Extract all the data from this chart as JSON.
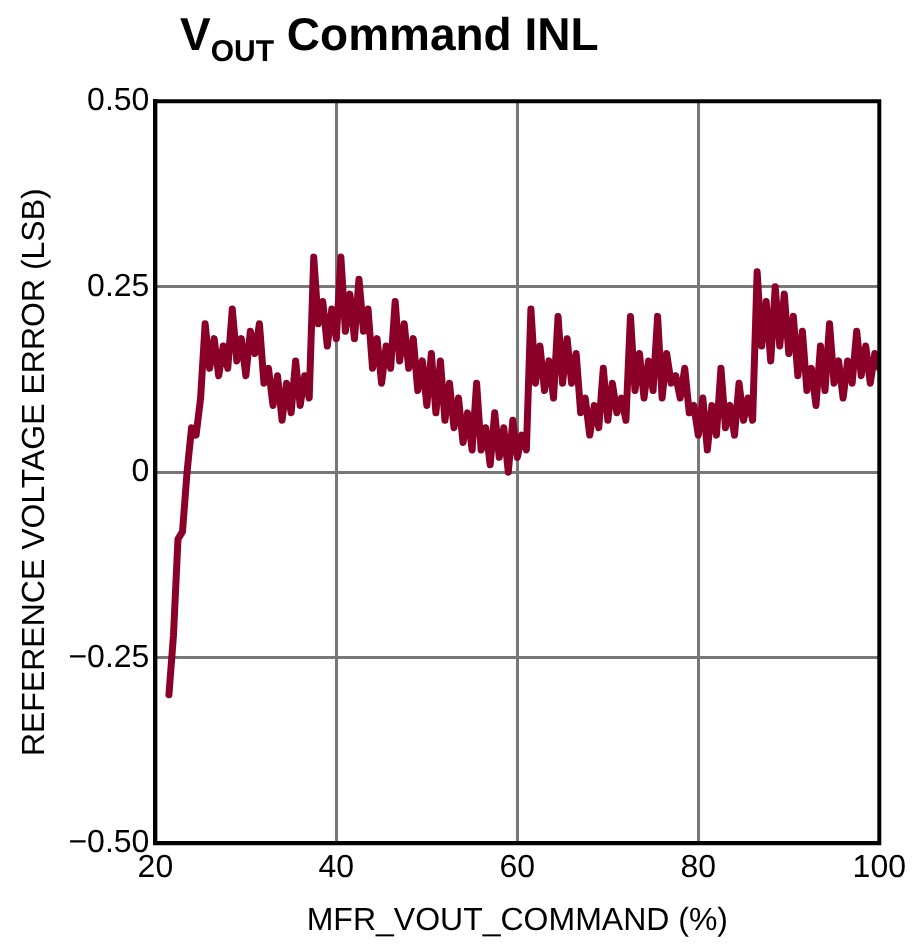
{
  "chart_data": {
    "type": "line",
    "title": "V$_{OUT}$ Command INL",
    "xlabel": "MFR_VOUT_COMMAND (%)",
    "ylabel": "REFERENCE VOLTAGE ERROR (LSB)",
    "x": [
      21.5,
      22,
      22.5,
      23,
      23.5,
      24,
      24.5,
      25,
      25.5,
      26,
      26.5,
      27,
      27.5,
      28,
      28.5,
      29,
      29.5,
      30,
      30.5,
      31,
      31.5,
      32,
      32.5,
      33,
      33.5,
      34,
      34.5,
      35,
      35.5,
      36,
      36.5,
      37,
      37.5,
      38,
      38.5,
      39,
      39.5,
      40,
      40.5,
      41,
      41.5,
      42,
      42.5,
      43,
      43.5,
      44,
      44.5,
      45,
      45.5,
      46,
      46.5,
      47,
      47.5,
      48,
      48.5,
      49,
      49.5,
      50,
      50.5,
      51,
      51.5,
      52,
      52.5,
      53,
      53.5,
      54,
      54.5,
      55,
      55.5,
      56,
      56.5,
      57,
      57.5,
      58,
      58.5,
      59,
      59.5,
      60,
      60.5,
      61,
      61.5,
      62,
      62.5,
      63,
      63.5,
      64,
      64.5,
      65,
      65.5,
      66,
      66.5,
      67,
      67.5,
      68,
      68.5,
      69,
      69.5,
      70,
      70.5,
      71,
      71.5,
      72,
      72.5,
      73,
      73.5,
      74,
      74.5,
      75,
      75.5,
      76,
      76.5,
      77,
      77.5,
      78,
      78.5,
      79,
      79.5,
      80,
      80.5,
      81,
      81.5,
      82,
      82.5,
      83,
      83.5,
      84,
      84.5,
      85,
      85.5,
      86,
      86.5,
      87,
      87.5,
      88,
      88.5,
      89,
      89.5,
      90,
      90.5,
      91,
      91.5,
      92,
      92.5,
      93,
      93.5,
      94,
      94.5,
      95,
      95.5,
      96,
      96.5,
      97,
      97.5,
      98,
      98.5,
      99,
      99.5,
      100
    ],
    "series": [
      {
        "color": "#8b0029",
        "values": [
          -0.3,
          -0.22,
          -0.09,
          -0.08,
          0.0,
          0.06,
          0.05,
          0.1,
          0.2,
          0.14,
          0.18,
          0.13,
          0.17,
          0.14,
          0.22,
          0.15,
          0.18,
          0.13,
          0.19,
          0.16,
          0.2,
          0.12,
          0.14,
          0.09,
          0.13,
          0.07,
          0.12,
          0.08,
          0.15,
          0.09,
          0.13,
          0.1,
          0.29,
          0.2,
          0.23,
          0.17,
          0.22,
          0.18,
          0.29,
          0.19,
          0.24,
          0.18,
          0.26,
          0.19,
          0.22,
          0.14,
          0.18,
          0.12,
          0.17,
          0.14,
          0.23,
          0.15,
          0.2,
          0.14,
          0.18,
          0.11,
          0.15,
          0.09,
          0.16,
          0.08,
          0.15,
          0.07,
          0.12,
          0.06,
          0.1,
          0.04,
          0.08,
          0.03,
          0.12,
          0.03,
          0.06,
          0.01,
          0.08,
          0.02,
          0.06,
          0.0,
          0.07,
          0.02,
          0.05,
          0.03,
          0.22,
          0.12,
          0.17,
          0.11,
          0.15,
          0.1,
          0.21,
          0.12,
          0.18,
          0.12,
          0.16,
          0.08,
          0.1,
          0.05,
          0.09,
          0.06,
          0.14,
          0.07,
          0.12,
          0.08,
          0.1,
          0.07,
          0.21,
          0.11,
          0.16,
          0.1,
          0.15,
          0.11,
          0.21,
          0.1,
          0.16,
          0.12,
          0.13,
          0.1,
          0.14,
          0.08,
          0.09,
          0.05,
          0.1,
          0.03,
          0.09,
          0.05,
          0.14,
          0.06,
          0.09,
          0.05,
          0.12,
          0.07,
          0.1,
          0.07,
          0.27,
          0.17,
          0.23,
          0.15,
          0.25,
          0.17,
          0.24,
          0.16,
          0.21,
          0.13,
          0.19,
          0.11,
          0.14,
          0.09,
          0.17,
          0.11,
          0.2,
          0.12,
          0.15,
          0.1,
          0.15,
          0.12,
          0.19,
          0.13,
          0.17,
          0.12,
          0.16,
          0.14
        ]
      }
    ],
    "xlim": [
      20,
      100
    ],
    "xticks": [
      20,
      40,
      60,
      80,
      100
    ],
    "ylim": [
      -0.5,
      0.5
    ],
    "yticks": [
      {
        "value": -0.5,
        "label": "−0.50"
      },
      {
        "value": -0.25,
        "label": "−0.25"
      },
      {
        "value": 0,
        "label": "0"
      },
      {
        "value": 0.25,
        "label": "0.25"
      },
      {
        "value": 0.5,
        "label": "0.50"
      }
    ],
    "grid": true,
    "legend": false,
    "marker": "none",
    "line_style": "solid"
  }
}
